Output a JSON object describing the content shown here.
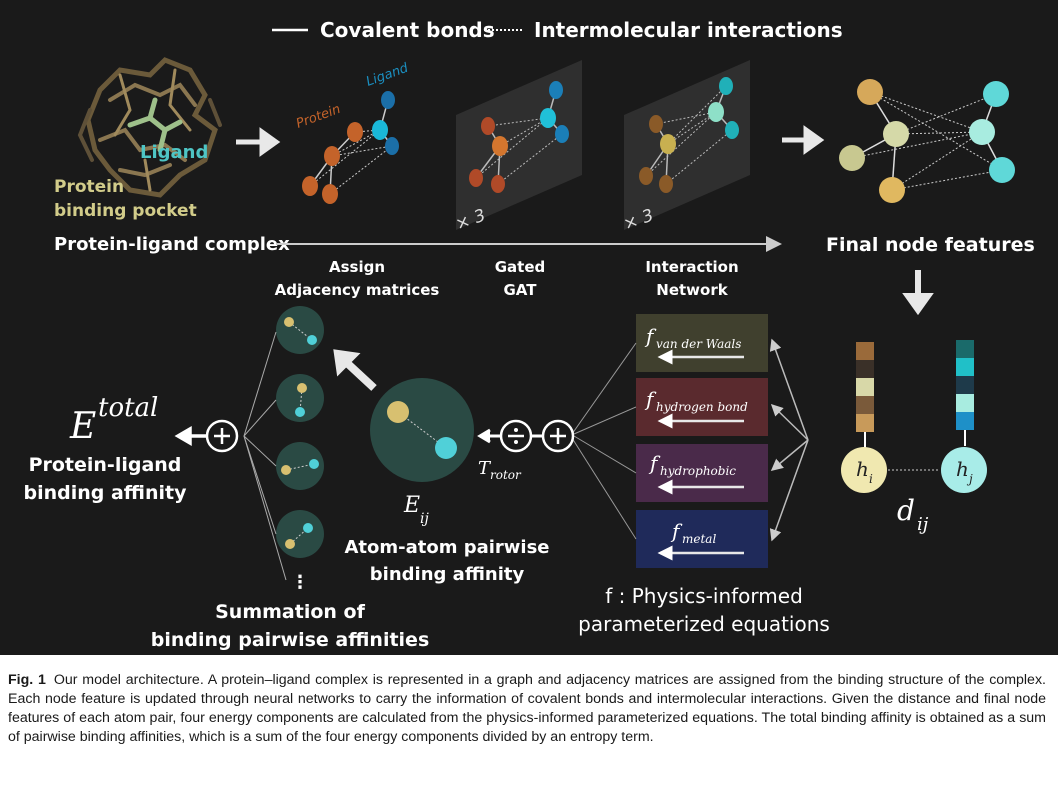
{
  "legend": {
    "solid": "Covalent bonds",
    "dotted": "Intermolecular interactions"
  },
  "complex": {
    "ligand": "Ligand",
    "pocket_line1": "Protein",
    "pocket_line2": "binding pocket",
    "title": "Protein-ligand complex"
  },
  "graph": {
    "protein": "Protein",
    "ligand": "Ligand"
  },
  "stages": [
    {
      "line1": "Assign",
      "line2": "Adjacency matrices"
    },
    {
      "line1": "Gated",
      "line2": "GAT"
    },
    {
      "line1": "Interaction",
      "line2": "Network"
    }
  ],
  "repeat": "× 3",
  "final": "Final node features",
  "node_labels": {
    "hi_base": "h",
    "hi_sub": "i",
    "hj_base": "h",
    "hj_sub": "j"
  },
  "distance": {
    "base": "d",
    "sub": "ij"
  },
  "energy_terms": [
    {
      "base": "f",
      "sub": "van der Waals"
    },
    {
      "base": "f",
      "sub": "hydrogen bond"
    },
    {
      "base": "f",
      "sub": "hydrophobic"
    },
    {
      "base": "f",
      "sub": "metal"
    }
  ],
  "physics": {
    "line1": "f : Physics-informed",
    "line2": "parameterized equations"
  },
  "rotor": {
    "base": "T",
    "sub": "rotor"
  },
  "pairwise": {
    "base": "E",
    "sub": "ij",
    "line1": "Atom-atom pairwise",
    "line2": "binding affinity"
  },
  "summation": {
    "line1": "Summation of",
    "line2": "binding pairwise affinities",
    "dots": "⋮"
  },
  "total": {
    "base": "E",
    "sup": "total",
    "line1": "Protein-ligand",
    "line2": "binding affinity"
  },
  "caption": {
    "figno": "Fig. 1",
    "text": "Our model architecture. A protein–ligand complex is represented in a graph and adjacency matrices are assigned from the binding structure of the complex. Each node feature is updated through neural networks to carry the information of covalent bonds and intermolecular interactions. Given the distance and final node features of each atom pair, four energy components are calculated from the physics-informed parameterized equations. The total binding affinity is obtained as a sum of pairwise binding affinities, which is a sum of the four energy components divided by an entropy term."
  },
  "colors": {
    "protein_node": "#c4632a",
    "ligand_node": "#1b8fc0",
    "final_orange": "#d6a85a",
    "final_beige": "#d5d9a8",
    "final_cyan": "#5fd8d8",
    "panel_vdw": "#40402e",
    "panel_hbond": "#5a2a2e",
    "panel_hydrophobic": "#4a2a4a",
    "panel_metal": "#1f2a5a",
    "circle_green": "#2a4a44"
  }
}
